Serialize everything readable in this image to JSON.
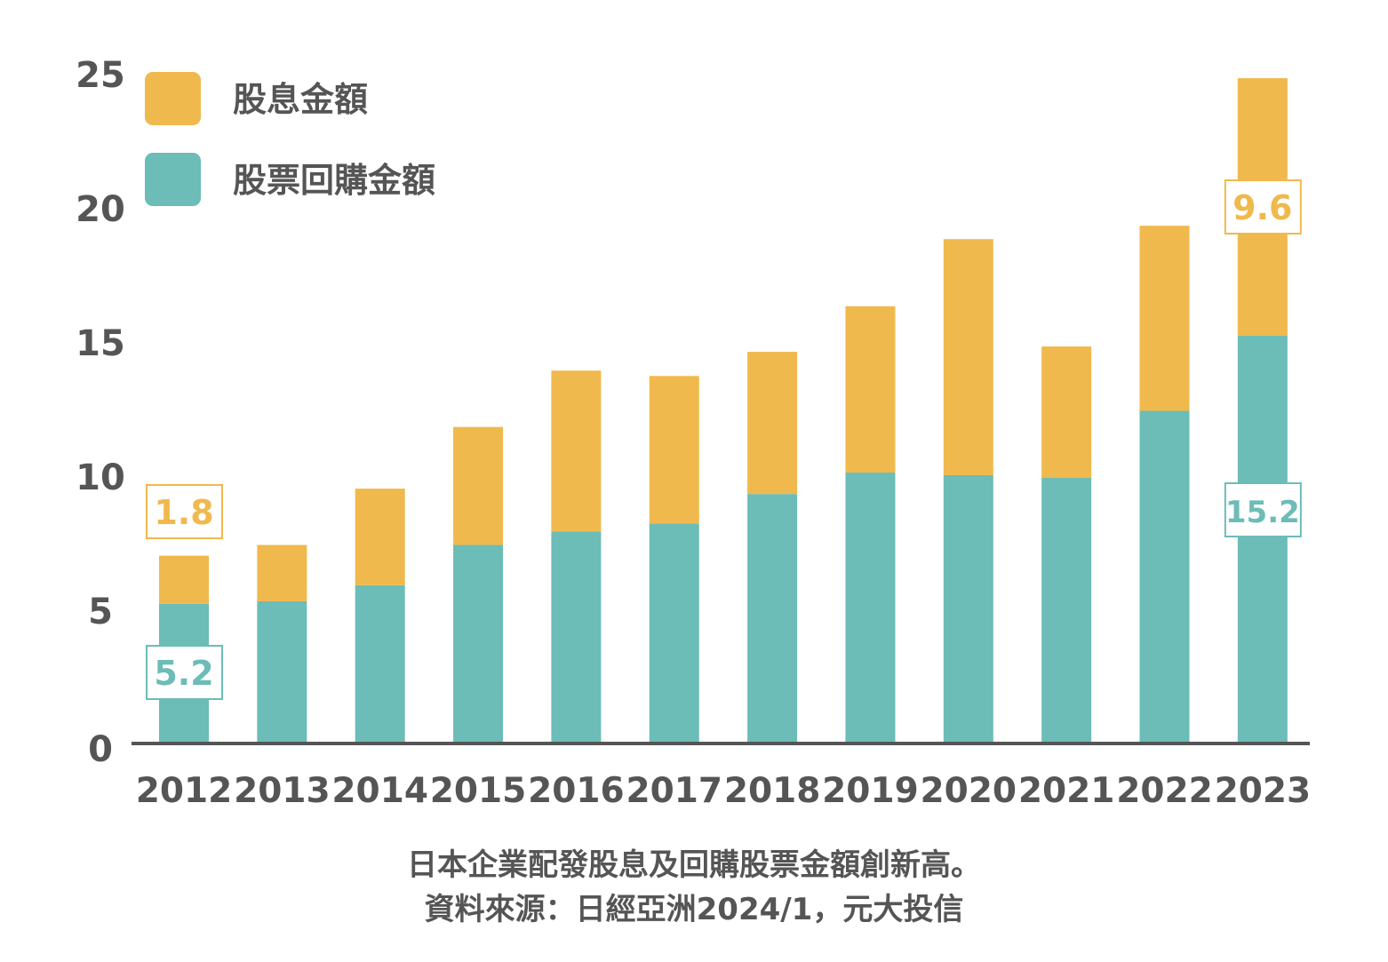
{
  "chart_data": {
    "type": "bar",
    "stacked": true,
    "title": "",
    "xlabel": "",
    "ylabel": "",
    "ylim": [
      0,
      25
    ],
    "yticks": [
      0,
      5,
      10,
      15,
      20,
      25
    ],
    "grid": false,
    "legend_position": "top-left",
    "categories": [
      "2012",
      "2013",
      "2014",
      "2015",
      "2016",
      "2017",
      "2018",
      "2019",
      "2020",
      "2021",
      "2022",
      "2023"
    ],
    "series": [
      {
        "name": "股票回購金額",
        "color": "#6CBCB7",
        "values": [
          5.2,
          5.3,
          5.9,
          7.4,
          7.9,
          8.2,
          9.3,
          10.1,
          10.0,
          9.9,
          12.4,
          15.2
        ]
      },
      {
        "name": "股息金額",
        "color": "#F0B94D",
        "values": [
          1.8,
          2.1,
          3.6,
          4.4,
          6.0,
          5.5,
          5.3,
          6.2,
          8.8,
          4.9,
          6.9,
          9.6
        ]
      }
    ],
    "data_labels": [
      {
        "category": "2012",
        "series": "股息金額",
        "text": "1.8"
      },
      {
        "category": "2012",
        "series": "股票回購金額",
        "text": "5.2"
      },
      {
        "category": "2023",
        "series": "股息金額",
        "text": "9.6"
      },
      {
        "category": "2023",
        "series": "股票回購金額",
        "text": "15.2"
      }
    ]
  },
  "footnote": {
    "line1": "日本企業配發股息及回購股票金額創新高。",
    "line2": "資料來源：日經亞洲2024/1，元大投信"
  },
  "colors": {
    "text": "#555555",
    "axis": "#555555"
  }
}
